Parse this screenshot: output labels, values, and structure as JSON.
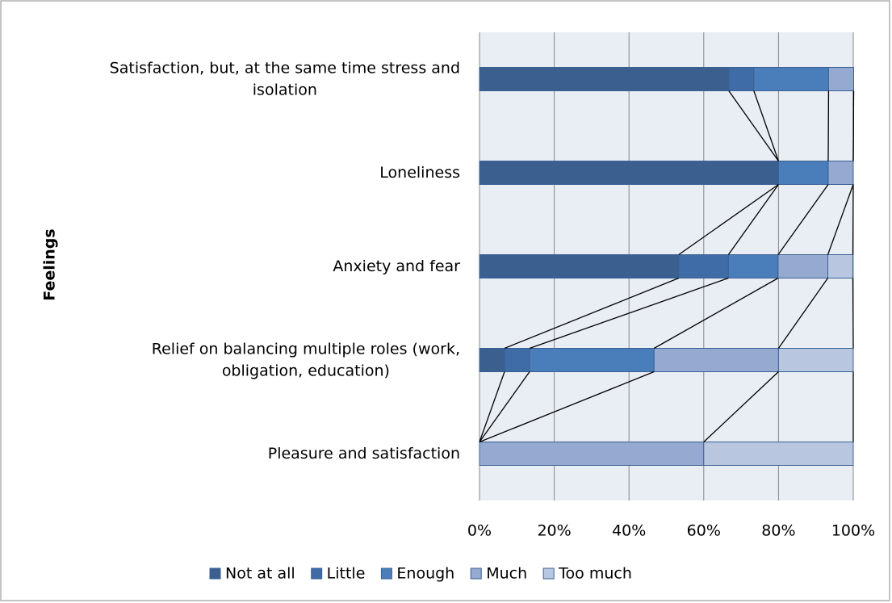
{
  "chart_data": {
    "type": "stacked-barh",
    "ylabel": "Feelings",
    "categories": [
      "Satisfaction, but, at the same time stress and isolation",
      "Loneliness",
      "Anxiety and fear",
      "Relief on balancing multiple roles (work, obligation, education)",
      "Pleasure and satisfaction"
    ],
    "series": [
      {
        "name": "Not at all",
        "color": "#3b5f8f",
        "values": [
          66.7,
          80,
          53.3,
          6.7,
          0
        ]
      },
      {
        "name": "Little",
        "color": "#3f6ca6",
        "values": [
          6.7,
          0,
          13.3,
          6.7,
          0
        ]
      },
      {
        "name": "Enough",
        "color": "#4a7ebb",
        "values": [
          20,
          13.3,
          13.3,
          33.3,
          0
        ]
      },
      {
        "name": "Much",
        "color": "#95a9d1",
        "values": [
          6.7,
          6.7,
          13.3,
          33.3,
          60
        ]
      },
      {
        "name": "Too much",
        "color": "#b9c6e0",
        "values": [
          0,
          0,
          6.7,
          20,
          40
        ]
      }
    ],
    "xlim": [
      0,
      100
    ],
    "xticks": [
      {
        "value": 0,
        "label": "0%"
      },
      {
        "value": 20,
        "label": "20%"
      },
      {
        "value": 40,
        "label": "40%"
      },
      {
        "value": 60,
        "label": "60%"
      },
      {
        "value": 80,
        "label": "80%"
      },
      {
        "value": 100,
        "label": "100%"
      }
    ],
    "grid": true,
    "series_lines": true,
    "legend": "bottom"
  }
}
